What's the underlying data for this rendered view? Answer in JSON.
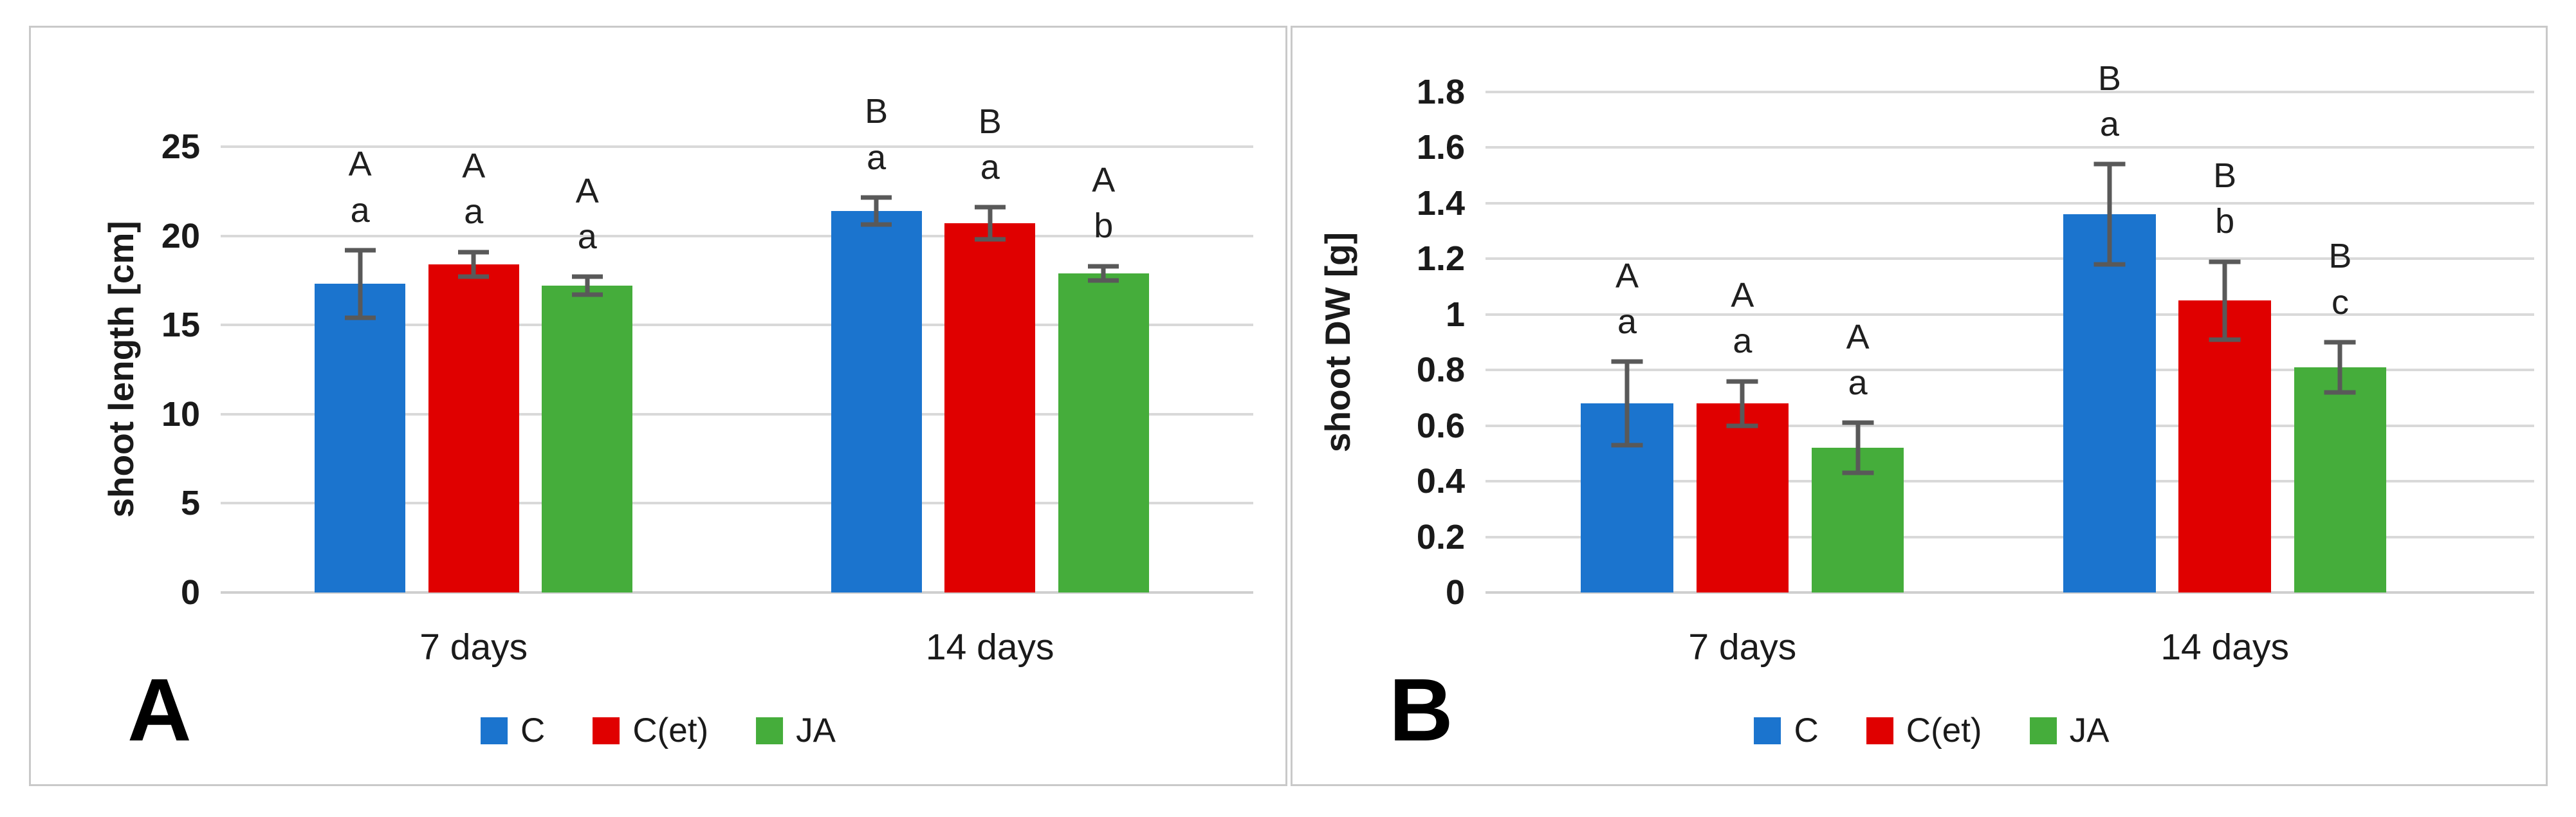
{
  "figure": {
    "background_color": "#FFFFFF",
    "panel_border_color": "#C9C9C9",
    "gridline_color": "#D9D9D9",
    "zero_line_color": "#CFCFCF",
    "error_bar_color": "#595959",
    "series_colors": {
      "C": "#1B74CE",
      "C(et)": "#E00000",
      "JA": "#45AD3B"
    }
  },
  "chart_data": [
    {
      "panel_label": "A",
      "type": "bar",
      "title": "",
      "xlabel": "",
      "ylabel": "shoot length [cm]",
      "categories": [
        "7 days",
        "14 days"
      ],
      "ytick_labels": [
        "0",
        "5",
        "10",
        "15",
        "20",
        "25"
      ],
      "ylim": [
        0,
        25
      ],
      "grid": true,
      "legend_position": "bottom",
      "series": [
        {
          "name": "C",
          "color": "#1B74CE",
          "values": [
            17.3,
            21.4
          ],
          "errors": [
            1.9,
            0.75
          ],
          "letters": [
            [
              "A",
              "a"
            ],
            [
              "B",
              "a"
            ]
          ]
        },
        {
          "name": "C(et)",
          "color": "#E00000",
          "values": [
            18.4,
            20.7
          ],
          "errors": [
            0.7,
            0.9
          ],
          "letters": [
            [
              "A",
              "a"
            ],
            [
              "B",
              "a"
            ]
          ]
        },
        {
          "name": "JA",
          "color": "#45AD3B",
          "values": [
            17.2,
            17.9
          ],
          "errors": [
            0.5,
            0.4
          ],
          "letters": [
            [
              "A",
              "a"
            ],
            [
              "A",
              "b"
            ]
          ]
        }
      ]
    },
    {
      "panel_label": "B",
      "type": "bar",
      "title": "",
      "xlabel": "",
      "ylabel": "shoot DW [g]",
      "categories": [
        "7 days",
        "14 days"
      ],
      "ytick_labels": [
        "0",
        "0.2",
        "0.4",
        "0.6",
        "0.8",
        "1",
        "1.2",
        "1.4",
        "1.6",
        "1.8"
      ],
      "ylim": [
        0,
        1.8
      ],
      "grid": true,
      "legend_position": "bottom",
      "series": [
        {
          "name": "C",
          "color": "#1B74CE",
          "values": [
            0.68,
            1.36
          ],
          "errors": [
            0.15,
            0.18
          ],
          "letters": [
            [
              "A",
              "a"
            ],
            [
              "B",
              "a"
            ]
          ]
        },
        {
          "name": "C(et)",
          "color": "#E00000",
          "values": [
            0.68,
            1.05
          ],
          "errors": [
            0.08,
            0.14
          ],
          "letters": [
            [
              "A",
              "a"
            ],
            [
              "B",
              "b"
            ]
          ]
        },
        {
          "name": "JA",
          "color": "#45AD3B",
          "values": [
            0.52,
            0.81
          ],
          "errors": [
            0.09,
            0.09
          ],
          "letters": [
            [
              "A",
              "a"
            ],
            [
              "B",
              "c"
            ]
          ]
        }
      ]
    }
  ]
}
